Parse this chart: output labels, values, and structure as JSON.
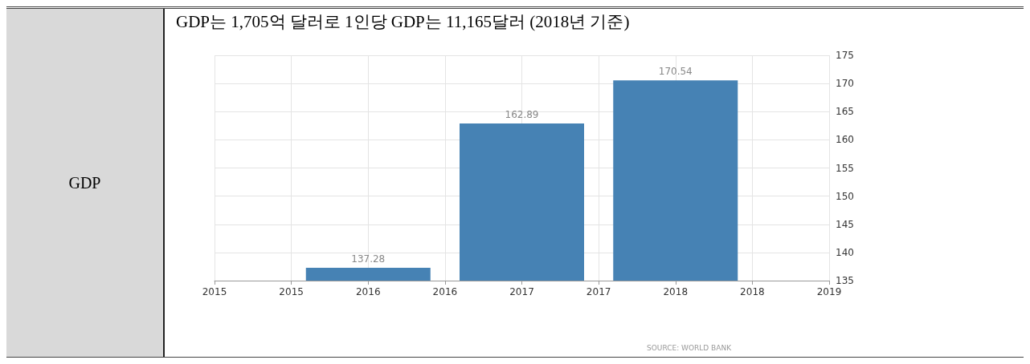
{
  "chart_data": {
    "type": "bar",
    "title": "GDP는 1,705억 달러로 1인당 GDP는 11,165달러 (2018년 기준)",
    "x": [
      2016,
      2017,
      2018
    ],
    "values": [
      137.28,
      162.89,
      170.54
    ],
    "color": "#4682b4",
    "data_labels": true,
    "xlim": [
      2015,
      2019
    ],
    "xticks": [
      2015,
      {
        "value": 2015.5,
        "label": "2015"
      },
      2016,
      {
        "value": 2016.5,
        "label": "2016"
      },
      2017,
      {
        "value": 2017.5,
        "label": "2017"
      },
      2018,
      {
        "value": 2018.5,
        "label": "2018"
      },
      2019
    ],
    "ylim": [
      135,
      175
    ],
    "yticks": [
      135,
      140,
      145,
      150,
      155,
      160,
      165,
      170,
      175
    ],
    "grid": true,
    "annotations": [
      "GDP",
      "SOURCE: WORLD BANK"
    ]
  }
}
